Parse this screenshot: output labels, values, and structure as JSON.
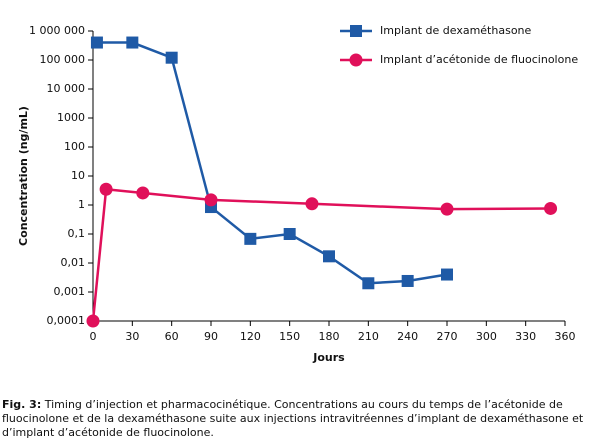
{
  "chart_data": {
    "type": "line",
    "log_y": true,
    "xlabel": "Jours",
    "ylabel": "Concentration (ng/mL)",
    "xlim": [
      0,
      360
    ],
    "xticks": [
      0,
      30,
      60,
      90,
      120,
      150,
      180,
      210,
      240,
      270,
      300,
      330,
      360
    ],
    "ylim": [
      0.0001,
      1000000
    ],
    "yticks": [
      {
        "value": 0.0001,
        "label": "0,0001"
      },
      {
        "value": 0.001,
        "label": "0,001"
      },
      {
        "value": 0.01,
        "label": "0,01"
      },
      {
        "value": 0.1,
        "label": "0,1"
      },
      1,
      10,
      100,
      1000,
      {
        "value": 10000,
        "label": "10 000"
      },
      {
        "value": 100000,
        "label": "100 000"
      },
      {
        "value": 1000000,
        "label": "1 000 000"
      }
    ],
    "legend": "upper right",
    "series": [
      {
        "name": "Implant de dexaméthasone",
        "color": "#1f5aa6",
        "marker": "square",
        "x": [
          3,
          30,
          60,
          90,
          120,
          150,
          180,
          210,
          240,
          270
        ],
        "values": [
          400000,
          400000,
          120000,
          0.85,
          0.068,
          0.1,
          0.017,
          0.002,
          0.0024,
          0.004
        ]
      },
      {
        "name": "Implant d’acétonide de fluocinolone",
        "color": "#e0105a",
        "marker": "circle",
        "x": [
          0,
          10,
          38,
          90,
          167,
          270,
          349
        ],
        "values": [
          0.0001,
          3.5,
          2.6,
          1.5,
          1.1,
          0.72,
          0.76
        ]
      }
    ]
  },
  "caption": {
    "label": "Fig. 3:",
    "text": "Timing d’injection et pharmacocinétique. Concentrations au cours du temps de l’acétonide de fluocinolone et de la dexaméthasone suite aux injections intravitréennes d’implant de dexaméthasone et d’implant d’acétonide de fluocinolone."
  }
}
